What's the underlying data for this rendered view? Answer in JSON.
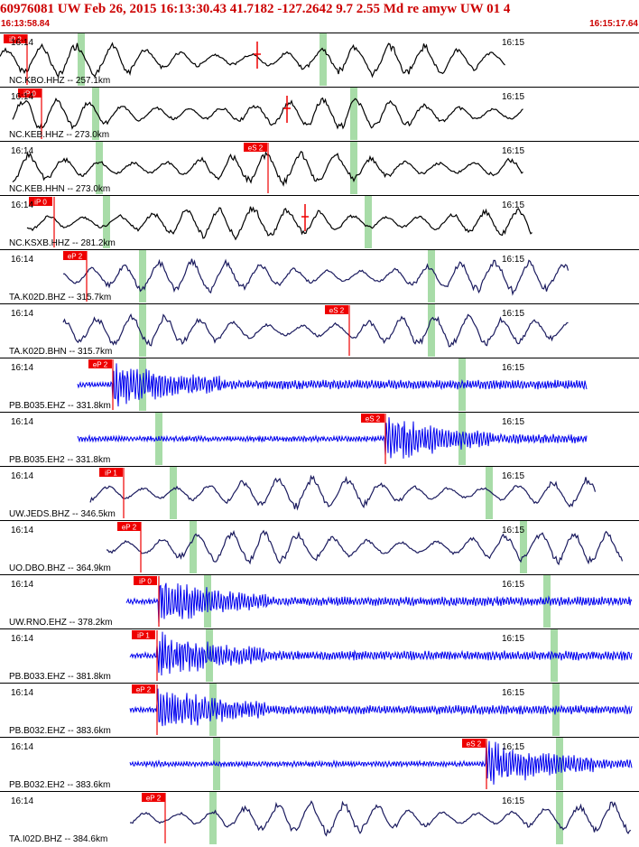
{
  "header": {
    "title": "60976081 UW Feb 26, 2015 16:13:30.43   41.7182 -127.2642  9.7 2.55 Md re amyw UW 01    4",
    "time_start": "16:13:58.84",
    "time_end": "16:15:17.64"
  },
  "colors": {
    "accent": "#cc0000",
    "pick_box": "#ee0000",
    "pick_text": "#ffffff",
    "broadband_trace": "#1a1a5e",
    "highgain_trace": "#0000ee",
    "arrival_band": "#a8dca8",
    "separator": "#000000",
    "label": "#000000"
  },
  "chart_data": {
    "type": "line",
    "title": "",
    "xlabel": "",
    "ylabel": "",
    "x_range": [
      "16:13:58.84",
      "16:15:17.64"
    ],
    "tick_labels": [
      "16:14",
      "16:15"
    ],
    "traces": [
      {
        "label": "NC.KBO.HHZ -- 257.1km",
        "pick": "iP 2",
        "trace_style": "black",
        "marker": "S"
      },
      {
        "label": "NC.KEB.HHZ -- 273.0km",
        "pick": "iP 0",
        "trace_style": "black",
        "marker": "S"
      },
      {
        "label": "NC.KEB.HHN -- 273.0km",
        "pick": "eS 2",
        "trace_style": "black",
        "marker": ""
      },
      {
        "label": "NC.KSXB.HHZ -- 281.2km",
        "pick": "iP 0",
        "trace_style": "black",
        "marker": "S"
      },
      {
        "label": "TA.K02D.BHZ -- 315.7km",
        "pick": "eP 2",
        "trace_style": "broadband",
        "marker": ""
      },
      {
        "label": "TA.K02D.BHN -- 315.7km",
        "pick": "eS 2",
        "trace_style": "broadband",
        "marker": ""
      },
      {
        "label": "PB.B035.EHZ -- 331.8km",
        "pick": "eP 2",
        "trace_style": "highgain",
        "marker": ""
      },
      {
        "label": "PB.B035.EH2 -- 331.8km",
        "pick": "eS 2",
        "trace_style": "highgain",
        "marker": ""
      },
      {
        "label": "UW.JEDS.BHZ -- 346.5km",
        "pick": "iP 1",
        "trace_style": "broadband",
        "marker": ""
      },
      {
        "label": "UO.DBO.BHZ -- 364.9km",
        "pick": "eP 2",
        "trace_style": "broadband",
        "marker": ""
      },
      {
        "label": "UW.RNO.EHZ -- 378.2km",
        "pick": "iP 0",
        "trace_style": "highgain",
        "marker": ""
      },
      {
        "label": "PB.B033.EHZ -- 381.8km",
        "pick": "iP 1",
        "trace_style": "highgain",
        "marker": ""
      },
      {
        "label": "PB.B032.EHZ -- 383.6km",
        "pick": "eP 2",
        "trace_style": "highgain",
        "marker": ""
      },
      {
        "label": "PB.B032.EH2 -- 383.6km",
        "pick": "eS 2",
        "trace_style": "highgain",
        "marker": ""
      },
      {
        "label": "TA.I02D.BHZ -- 384.6km",
        "pick": "eP 2",
        "trace_style": "broadband",
        "marker": ""
      }
    ]
  }
}
